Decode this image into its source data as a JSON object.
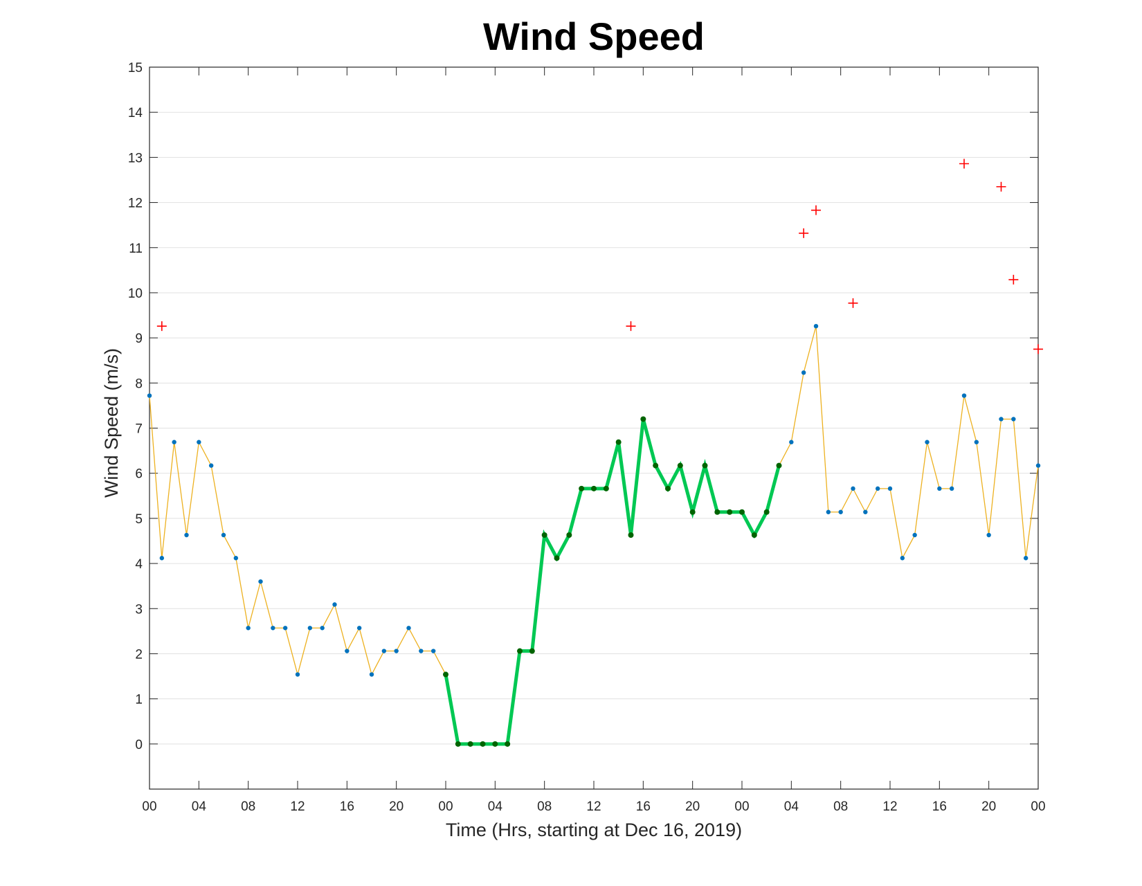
{
  "chart_data": {
    "type": "line",
    "title": "Wind Speed",
    "xlabel": "Time (Hrs, starting at Dec 16, 2019)",
    "ylabel": "Wind Speed (m/s)",
    "ylim": [
      -1,
      15
    ],
    "xlim": [
      0,
      72
    ],
    "grid": "horizontal",
    "yticks": [
      0,
      1,
      2,
      3,
      4,
      5,
      6,
      7,
      8,
      9,
      10,
      11,
      12,
      13,
      14,
      15
    ],
    "xticks": [
      {
        "x": 0,
        "label": "00"
      },
      {
        "x": 4,
        "label": "04"
      },
      {
        "x": 8,
        "label": "08"
      },
      {
        "x": 12,
        "label": "12"
      },
      {
        "x": 16,
        "label": "16"
      },
      {
        "x": 20,
        "label": "20"
      },
      {
        "x": 24,
        "label": "00"
      },
      {
        "x": 28,
        "label": "04"
      },
      {
        "x": 32,
        "label": "08"
      },
      {
        "x": 36,
        "label": "12"
      },
      {
        "x": 40,
        "label": "16"
      },
      {
        "x": 44,
        "label": "20"
      },
      {
        "x": 48,
        "label": "00"
      },
      {
        "x": 52,
        "label": "04"
      },
      {
        "x": 56,
        "label": "08"
      },
      {
        "x": 60,
        "label": "12"
      },
      {
        "x": 64,
        "label": "16"
      },
      {
        "x": 68,
        "label": "20"
      },
      {
        "x": 72,
        "label": "00"
      }
    ],
    "series": [
      {
        "role": "hourly wind speed",
        "color": "#EDB120",
        "marker_color": "#0072BD",
        "x": [
          0,
          1,
          2,
          3,
          4,
          5,
          6,
          7,
          8,
          9,
          10,
          11,
          12,
          13,
          14,
          15,
          16,
          17,
          18,
          19,
          20,
          21,
          22,
          23,
          24,
          25,
          26,
          27,
          28,
          29,
          30,
          31,
          32,
          33,
          34,
          35,
          36,
          37,
          38,
          39,
          40,
          41,
          42,
          43,
          44,
          45,
          46,
          47,
          48,
          49,
          50,
          51,
          52,
          53,
          54,
          55,
          56,
          57,
          58,
          59,
          60,
          61,
          62,
          63,
          64,
          65,
          66,
          67,
          68,
          69,
          70,
          71,
          72
        ],
        "y": [
          7.72,
          4.12,
          6.69,
          4.63,
          6.69,
          6.17,
          4.63,
          4.12,
          2.57,
          3.6,
          2.57,
          2.57,
          1.54,
          2.57,
          2.57,
          3.09,
          2.06,
          2.57,
          1.54,
          2.06,
          2.06,
          2.57,
          2.06,
          2.06,
          1.54,
          0,
          0,
          0,
          0,
          0,
          2.06,
          2.06,
          4.63,
          4.12,
          4.63,
          5.66,
          5.66,
          5.66,
          6.69,
          4.63,
          7.2,
          6.17,
          5.66,
          6.17,
          5.14,
          6.17,
          5.14,
          5.14,
          5.14,
          4.63,
          5.14,
          6.17,
          6.69,
          8.23,
          9.26,
          5.14,
          5.14,
          5.66,
          5.14,
          5.66,
          5.66,
          4.12,
          4.63,
          6.69,
          5.66,
          5.66,
          7.72,
          6.69,
          4.63,
          7.2,
          7.2,
          4.12,
          6.17
        ]
      },
      {
        "role": "highlighted segment",
        "color": "#00C853",
        "marker_color": "#006400",
        "x": [
          24,
          25,
          26,
          27,
          28,
          29,
          30,
          31,
          32,
          33,
          34,
          35,
          36,
          37,
          38,
          39,
          40,
          41,
          42,
          43,
          44,
          45,
          46,
          47,
          48,
          49,
          50,
          51
        ],
        "y": [
          1.54,
          0,
          0,
          0,
          0,
          0,
          2.06,
          2.06,
          4.63,
          4.12,
          4.63,
          5.66,
          5.66,
          5.66,
          6.69,
          4.63,
          7.2,
          6.17,
          5.66,
          6.17,
          5.14,
          6.17,
          5.14,
          5.14,
          5.14,
          4.63,
          5.14,
          6.17
        ]
      },
      {
        "role": "gust markers",
        "color": "#FF0000",
        "marker": "+",
        "x": [
          1,
          39,
          53,
          54,
          57,
          66,
          69,
          70,
          72
        ],
        "y": [
          9.26,
          9.26,
          11.32,
          11.83,
          9.77,
          12.86,
          12.35,
          10.29,
          8.75
        ]
      }
    ]
  }
}
